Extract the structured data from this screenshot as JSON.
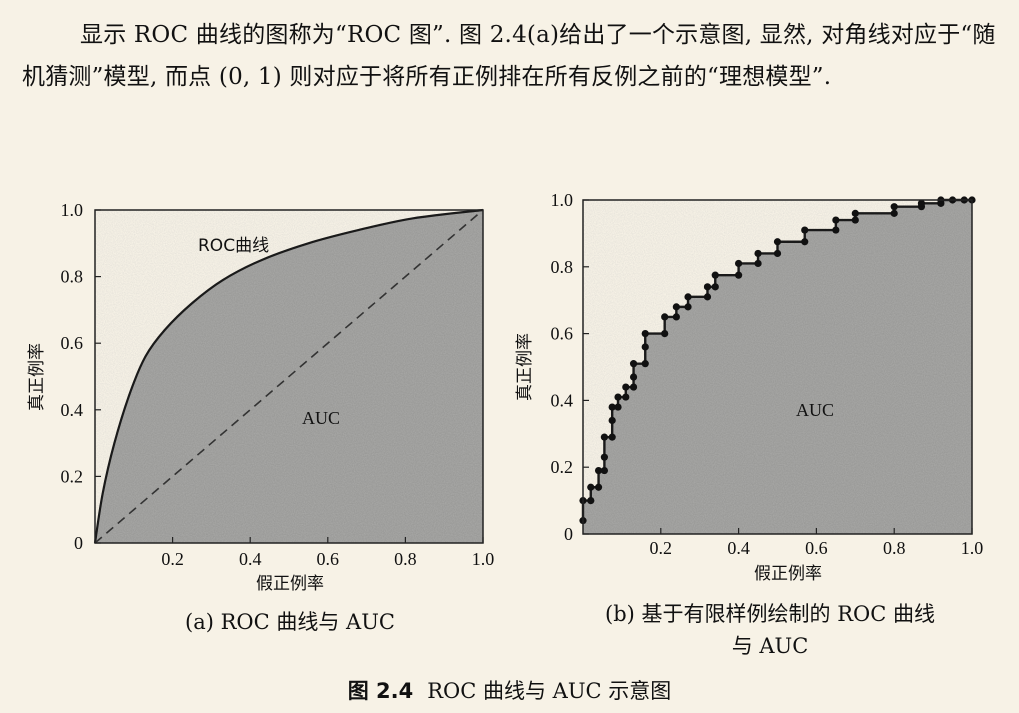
{
  "paragraph": "显示 ROC 曲线的图称为“ROC 图”. 图 2.4(a)给出了一个示意图, 显然, 对角线对应于“随机猜测”模型, 而点 (0, 1) 则对应于将所有正例排在所有反例之前的“理想模型”.",
  "figure": {
    "number": "图 2.4",
    "title": "ROC 曲线与 AUC 示意图"
  },
  "chart_data": [
    {
      "type": "area",
      "caption": "(a) ROC 曲线与 AUC",
      "xlabel": "假正例率",
      "ylabel": "真正例率",
      "xlim": [
        0,
        1
      ],
      "ylim": [
        0,
        1
      ],
      "x_ticks": [
        "0.2",
        "0.4",
        "0.6",
        "0.8",
        "1.0"
      ],
      "y_ticks": [
        "0",
        "0.2",
        "0.4",
        "0.6",
        "0.8",
        "1.0"
      ],
      "curve_label": "ROC曲线",
      "area_label": "AUC",
      "series": [
        {
          "name": "ROC曲线",
          "x": [
            0,
            0.02,
            0.05,
            0.09,
            0.13,
            0.18,
            0.25,
            0.33,
            0.43,
            0.55,
            0.68,
            0.82,
            1.0
          ],
          "y": [
            0,
            0.15,
            0.3,
            0.45,
            0.56,
            0.64,
            0.72,
            0.79,
            0.85,
            0.9,
            0.94,
            0.975,
            1.0
          ]
        },
        {
          "name": "随机猜测",
          "x": [
            0,
            1
          ],
          "y": [
            0,
            1
          ],
          "style": "dashed"
        }
      ]
    },
    {
      "type": "line",
      "caption_line1": "(b) 基于有限样例绘制的 ROC 曲线",
      "caption_line2": "与 AUC",
      "xlabel": "假正例率",
      "ylabel": "真正例率",
      "xlim": [
        0,
        1
      ],
      "ylim": [
        0,
        1
      ],
      "x_ticks": [
        "0.2",
        "0.4",
        "0.6",
        "0.8",
        "1.0"
      ],
      "y_ticks": [
        "0",
        "0.2",
        "0.4",
        "0.6",
        "0.8",
        "1.0"
      ],
      "area_label": "AUC",
      "series": [
        {
          "name": "ROC",
          "step": true,
          "points": [
            [
              0,
              0.04
            ],
            [
              0,
              0.1
            ],
            [
              0.02,
              0.1
            ],
            [
              0.02,
              0.14
            ],
            [
              0.04,
              0.14
            ],
            [
              0.04,
              0.19
            ],
            [
              0.055,
              0.19
            ],
            [
              0.055,
              0.23
            ],
            [
              0.055,
              0.29
            ],
            [
              0.075,
              0.29
            ],
            [
              0.075,
              0.34
            ],
            [
              0.075,
              0.38
            ],
            [
              0.09,
              0.38
            ],
            [
              0.09,
              0.41
            ],
            [
              0.11,
              0.41
            ],
            [
              0.11,
              0.44
            ],
            [
              0.13,
              0.44
            ],
            [
              0.13,
              0.47
            ],
            [
              0.13,
              0.51
            ],
            [
              0.16,
              0.51
            ],
            [
              0.16,
              0.56
            ],
            [
              0.16,
              0.6
            ],
            [
              0.21,
              0.6
            ],
            [
              0.21,
              0.65
            ],
            [
              0.24,
              0.65
            ],
            [
              0.24,
              0.68
            ],
            [
              0.27,
              0.68
            ],
            [
              0.27,
              0.71
            ],
            [
              0.32,
              0.71
            ],
            [
              0.32,
              0.74
            ],
            [
              0.34,
              0.74
            ],
            [
              0.34,
              0.775
            ],
            [
              0.4,
              0.775
            ],
            [
              0.4,
              0.81
            ],
            [
              0.45,
              0.81
            ],
            [
              0.45,
              0.84
            ],
            [
              0.5,
              0.84
            ],
            [
              0.5,
              0.875
            ],
            [
              0.57,
              0.875
            ],
            [
              0.57,
              0.91
            ],
            [
              0.65,
              0.91
            ],
            [
              0.65,
              0.94
            ],
            [
              0.7,
              0.94
            ],
            [
              0.7,
              0.96
            ],
            [
              0.8,
              0.96
            ],
            [
              0.8,
              0.98
            ],
            [
              0.87,
              0.98
            ],
            [
              0.87,
              0.99
            ],
            [
              0.92,
              0.99
            ],
            [
              0.92,
              1.0
            ],
            [
              0.95,
              1.0
            ],
            [
              0.98,
              1.0
            ],
            [
              1.0,
              1.0
            ]
          ]
        }
      ]
    }
  ]
}
